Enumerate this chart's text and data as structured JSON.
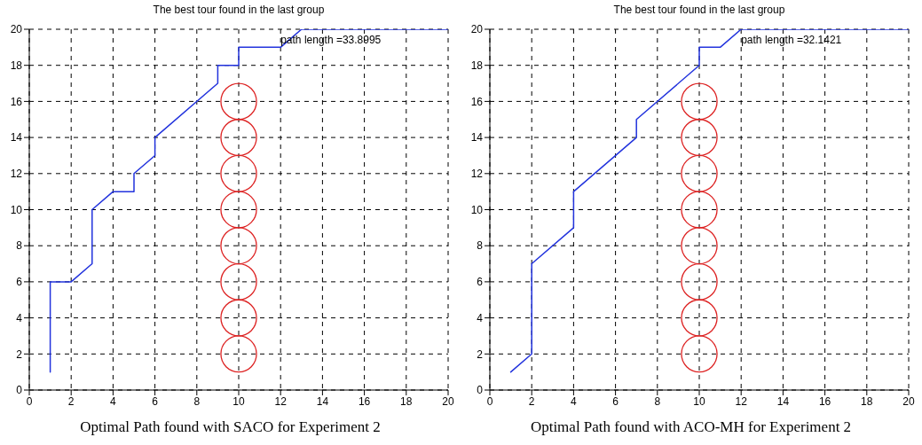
{
  "chart_data": [
    {
      "type": "line",
      "title": "The best tour found in the last group",
      "xlim": [
        0,
        20
      ],
      "ylim": [
        0,
        20
      ],
      "xticks": [
        0,
        2,
        4,
        6,
        8,
        10,
        12,
        14,
        16,
        18,
        20
      ],
      "yticks": [
        0,
        2,
        4,
        6,
        8,
        10,
        12,
        14,
        16,
        18,
        20
      ],
      "grid": true,
      "line_style": "solid",
      "series": [
        {
          "color": "#2233dd",
          "marker": "none",
          "x": [
            1,
            1,
            2,
            3,
            3,
            4,
            5,
            5,
            6,
            6,
            9,
            9,
            10,
            10,
            12,
            13,
            20
          ],
          "values": [
            1,
            6,
            6,
            7,
            10,
            11,
            11,
            12,
            13,
            14,
            17,
            18,
            18,
            19,
            19,
            20,
            20
          ]
        },
        {
          "type": "bubble",
          "color": "#dd2222",
          "marker": "circle",
          "x": [
            10,
            10,
            10,
            10,
            10,
            10,
            10,
            10
          ],
          "values": [
            2,
            4,
            6,
            8,
            10,
            12,
            14,
            16
          ],
          "sizes": [
            1,
            1,
            1,
            1,
            1,
            1,
            1,
            1
          ]
        }
      ],
      "annotations": [
        "path length =33.8995",
        "Optimal Path found with SACO for Experiment 2"
      ]
    },
    {
      "type": "line",
      "title": "The best tour found in the last group",
      "xlim": [
        0,
        20
      ],
      "ylim": [
        0,
        20
      ],
      "xticks": [
        0,
        2,
        4,
        6,
        8,
        10,
        12,
        14,
        16,
        18,
        20
      ],
      "yticks": [
        0,
        2,
        4,
        6,
        8,
        10,
        12,
        14,
        16,
        18,
        20
      ],
      "grid": true,
      "line_style": "solid",
      "series": [
        {
          "color": "#2233dd",
          "marker": "none",
          "x": [
            1,
            2,
            2,
            4,
            4,
            7,
            7,
            10,
            10,
            11,
            12,
            20
          ],
          "values": [
            1,
            2,
            7,
            9,
            11,
            14,
            15,
            18,
            19,
            19,
            20,
            20
          ]
        },
        {
          "type": "bubble",
          "color": "#dd2222",
          "marker": "circle",
          "x": [
            10,
            10,
            10,
            10,
            10,
            10,
            10,
            10
          ],
          "values": [
            2,
            4,
            6,
            8,
            10,
            12,
            14,
            16
          ],
          "sizes": [
            1,
            1,
            1,
            1,
            1,
            1,
            1,
            1
          ]
        }
      ],
      "annotations": [
        "path length =32.1421",
        "Optimal Path found with ACO-MH for Experiment 2"
      ]
    }
  ]
}
